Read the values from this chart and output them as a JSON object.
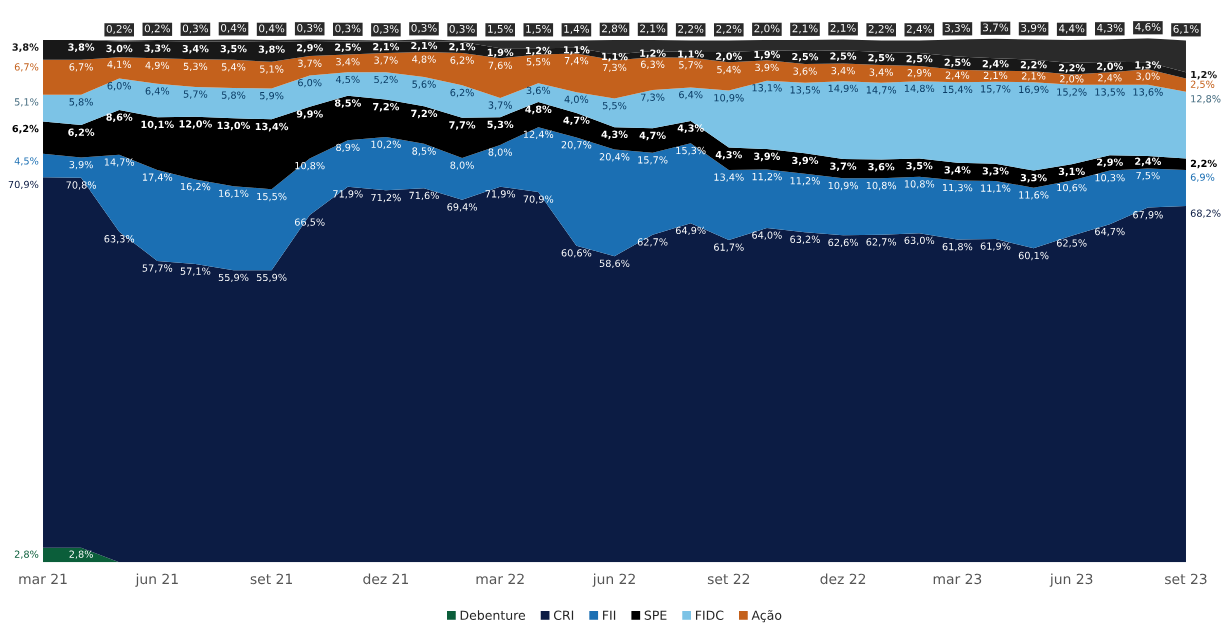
{
  "chart_data": {
    "type": "area",
    "stacked": true,
    "categories": [
      "mar 21",
      null,
      null,
      "jun 21",
      null,
      null,
      "set 21",
      null,
      null,
      "dez 21",
      null,
      null,
      "mar 22",
      null,
      null,
      "jun 22",
      null,
      null,
      "set 22",
      null,
      null,
      "dez 22",
      null,
      null,
      "mar 23",
      null,
      null,
      "jun 23",
      null,
      null,
      "set 23"
    ],
    "tick_labels": "x",
    "legend": "bottom",
    "grid": false,
    "series": [
      {
        "name": "Debenture",
        "color": "#0b5e3a",
        "values": [
          2.8,
          2.8,
          0,
          0,
          0,
          0,
          0,
          0,
          0,
          0,
          0,
          0,
          0,
          0,
          0,
          0,
          0,
          0,
          0,
          0,
          0,
          0,
          0,
          0,
          0,
          0,
          0,
          0,
          0,
          0,
          0
        ],
        "value_labels": [
          "2,8%",
          "2,8%",
          null,
          null,
          null,
          null,
          null,
          null,
          null,
          null,
          null,
          null,
          null,
          null,
          null,
          null,
          null,
          null,
          null,
          null,
          null,
          null,
          null,
          null,
          null,
          null,
          null,
          null,
          null,
          null,
          null
        ]
      },
      {
        "name": "CRI",
        "color": "#0c1c44",
        "values": [
          70.9,
          70.8,
          63.3,
          57.7,
          57.1,
          55.9,
          55.9,
          66.5,
          71.9,
          71.2,
          71.6,
          69.4,
          71.9,
          70.9,
          60.6,
          58.6,
          62.7,
          64.9,
          61.7,
          64.0,
          63.2,
          62.6,
          62.7,
          63.0,
          61.8,
          61.9,
          60.1,
          62.5,
          64.7,
          67.9,
          68.2
        ],
        "value_labels": [
          "70,9%",
          "70,8%",
          "63,3%",
          "57,7%",
          "57,1%",
          "55,9%",
          "55,9%",
          "66,5%",
          "71,9%",
          "71,2%",
          "71,6%",
          "69,4%",
          "71,9%",
          "70,9%",
          "60,6%",
          "58,6%",
          "62,7%",
          "64,9%",
          "61,7%",
          "64,0%",
          "63,2%",
          "62,6%",
          "62,7%",
          "63,0%",
          "61,8%",
          "61,9%",
          "60,1%",
          "62,5%",
          "64,7%",
          "67,9%",
          "68,2%"
        ]
      },
      {
        "name": "FII",
        "color": "#1b6fb3",
        "values": [
          4.5,
          3.9,
          14.7,
          17.4,
          16.2,
          16.1,
          15.5,
          10.8,
          8.9,
          10.2,
          8.5,
          8.0,
          8.0,
          12.4,
          20.7,
          20.4,
          15.7,
          15.3,
          13.4,
          11.2,
          11.2,
          10.9,
          10.8,
          10.8,
          11.3,
          11.1,
          11.6,
          10.6,
          10.3,
          7.5,
          6.9
        ],
        "value_labels": [
          "4,5%",
          "3,9%",
          "14,7%",
          "17,4%",
          "16,2%",
          "16,1%",
          "15,5%",
          "10,8%",
          "8,9%",
          "10,2%",
          "8,5%",
          "8,0%",
          "8,0%",
          "12,4%",
          "20,7%",
          "20,4%",
          "15,7%",
          "15,3%",
          "13,4%",
          "11,2%",
          "11,2%",
          "10,9%",
          "10,8%",
          "10,8%",
          "11,3%",
          "11,1%",
          "11,6%",
          "10,6%",
          "10,3%",
          "7,5%",
          "6,9%"
        ]
      },
      {
        "name": "SPE",
        "color": "#000000",
        "values": [
          6.2,
          6.2,
          8.6,
          10.1,
          12.0,
          13.0,
          13.4,
          9.9,
          8.5,
          7.2,
          7.2,
          7.7,
          5.3,
          4.8,
          4.7,
          4.3,
          4.7,
          4.3,
          4.3,
          3.9,
          3.9,
          3.7,
          3.6,
          3.5,
          3.4,
          3.3,
          3.3,
          3.1,
          2.9,
          2.4,
          2.2
        ],
        "value_labels": [
          "6,2%",
          "6,2%",
          "8,6%",
          "10,1%",
          "12,0%",
          "13,0%",
          "13,4%",
          "9,9%",
          "8,5%",
          "7,2%",
          "7,2%",
          "7,7%",
          "5,3%",
          "4,8%",
          "4,7%",
          "4,3%",
          "4,7%",
          "4,3%",
          "4,3%",
          "3,9%",
          "3,9%",
          "3,7%",
          "3,6%",
          "3,5%",
          "3,4%",
          "3,3%",
          "3,3%",
          "3,1%",
          "2,9%",
          "2,4%",
          "2,2%"
        ]
      },
      {
        "name": "FIDC",
        "color": "#7cc3e6",
        "values": [
          5.1,
          5.8,
          6.0,
          6.4,
          5.7,
          5.8,
          5.9,
          6.0,
          4.5,
          5.2,
          5.6,
          6.2,
          3.7,
          3.6,
          4.0,
          5.5,
          7.3,
          6.4,
          10.9,
          13.1,
          13.5,
          14.9,
          14.7,
          14.8,
          15.4,
          15.7,
          16.9,
          15.2,
          13.5,
          13.6,
          12.8
        ],
        "value_labels": [
          "5,1%",
          "5,8%",
          "6,0%",
          "6,4%",
          "5,7%",
          "5,8%",
          "5,9%",
          "6,0%",
          "4,5%",
          "5,2%",
          "5,6%",
          "6,2%",
          "3,7%",
          "3,6%",
          "4,0%",
          "5,5%",
          "7,3%",
          "6,4%",
          "10,9%",
          "13,1%",
          "13,5%",
          "14,9%",
          "14,7%",
          "14,8%",
          "15,4%",
          "15,7%",
          "16,9%",
          "15,2%",
          "13,5%",
          "13,6%",
          "12,8%"
        ]
      },
      {
        "name": "Ação",
        "color": "#c4611c",
        "values": [
          6.7,
          6.7,
          4.1,
          4.9,
          5.3,
          5.4,
          5.1,
          3.7,
          3.4,
          3.7,
          4.8,
          6.2,
          7.6,
          5.5,
          7.4,
          7.3,
          6.3,
          5.7,
          5.4,
          3.9,
          3.6,
          3.4,
          3.4,
          2.9,
          2.4,
          2.1,
          2.1,
          2.0,
          2.4,
          3.0,
          2.5
        ],
        "value_labels": [
          "6,7%",
          "6,7%",
          "4,1%",
          "4,9%",
          "5,3%",
          "5,4%",
          "5,1%",
          "3,7%",
          "3,4%",
          "3,7%",
          "4,8%",
          "6,2%",
          "7,6%",
          "5,5%",
          "7,4%",
          "7,3%",
          "6,3%",
          "5,7%",
          "5,4%",
          "3,9%",
          "3,6%",
          "3,4%",
          "3,4%",
          "2,9%",
          "2,4%",
          "2,1%",
          "2,1%",
          "2,0%",
          "2,4%",
          "3,0%",
          "2,5%"
        ]
      },
      {
        "color": "#181818",
        "values": [
          3.8,
          3.8,
          3.0,
          3.3,
          3.4,
          3.5,
          3.8,
          2.9,
          2.5,
          2.1,
          2.1,
          2.1,
          1.9,
          1.2,
          1.1,
          1.1,
          1.2,
          1.1,
          2.0,
          1.9,
          2.5,
          2.5,
          2.5,
          2.5,
          2.5,
          2.4,
          2.2,
          2.2,
          2.0,
          1.3,
          1.2
        ],
        "value_labels": [
          "3,8%",
          "3,8%",
          "3,0%",
          "3,3%",
          "3,4%",
          "3,5%",
          "3,8%",
          "2,9%",
          "2,5%",
          "2,1%",
          "2,1%",
          "2,1%",
          "1,9%",
          "1,2%",
          "1,1%",
          "1,1%",
          "1,2%",
          "1,1%",
          "2,0%",
          "1,9%",
          "2,5%",
          "2,5%",
          "2,5%",
          "2,5%",
          "2,5%",
          "2,4%",
          "2,2%",
          "2,2%",
          "2,0%",
          "1,3%",
          "1,2%"
        ]
      },
      {
        "color": "#2a2a2a",
        "values": [
          0,
          0,
          0.2,
          0.2,
          0.3,
          0.4,
          0.4,
          0.3,
          0.3,
          0.3,
          0.3,
          0.3,
          1.5,
          1.5,
          1.4,
          2.8,
          2.1,
          2.2,
          2.2,
          2.0,
          2.1,
          2.1,
          2.2,
          2.4,
          3.3,
          3.7,
          3.9,
          4.4,
          4.3,
          4.6,
          6.1
        ],
        "value_labels": [
          null,
          null,
          "0,2%",
          "0,2%",
          "0,3%",
          "0,4%",
          "0,4%",
          "0,3%",
          "0,3%",
          "0,3%",
          "0,3%",
          "0,3%",
          "1,5%",
          "1,5%",
          "1,4%",
          "2,8%",
          "2,1%",
          "2,2%",
          "2,2%",
          "2,0%",
          "2,1%",
          "2,1%",
          "2,2%",
          "2,4%",
          "3,3%",
          "3,7%",
          "3,9%",
          "4,4%",
          "4,3%",
          "4,6%",
          "6,1%"
        ]
      }
    ]
  }
}
